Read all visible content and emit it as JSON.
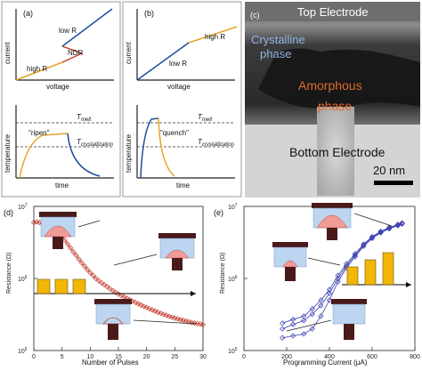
{
  "panel_a": {
    "label": "(a)",
    "iv": {
      "ylabel": "current",
      "xlabel": "voltage",
      "low_r": "low R",
      "high_r": "high R",
      "ndr": "NDR"
    },
    "temp": {
      "ylabel": "temperature",
      "xlabel": "time",
      "t_melt": "T",
      "t_melt_sub": "melt",
      "t_cryst": "T",
      "t_cryst_sub": "crystallization",
      "note": "\"ripen\""
    }
  },
  "panel_b": {
    "label": "(b)",
    "iv": {
      "ylabel": "current",
      "xlabel": "voltage",
      "low_r": "low R",
      "high_r": "high R"
    },
    "temp": {
      "ylabel": "temperature",
      "xlabel": "time",
      "t_melt": "T",
      "t_melt_sub": "melt",
      "t_cryst": "T",
      "t_cryst_sub": "crystallization",
      "note": "\"quench\""
    }
  },
  "panel_c": {
    "label": "(c)",
    "top_electrode": "Top Electrode",
    "crystalline_l1": "Crystalline",
    "crystalline_l2": "phase",
    "amorphous_l1": "Amorphous",
    "amorphous_l2": "phase",
    "bottom_electrode": "Bottom Electrode",
    "scale_bar": "20 nm"
  },
  "colors": {
    "blue_curve": "#1f4e9e",
    "orange_curve": "#e6a228",
    "red_curve": "#c0392b",
    "ndr_curve": "#c0392b",
    "series_d": "#c0392b",
    "series_e": "#3a3fb0",
    "bars": "#f2b705",
    "crystalline_text": "#8fb3e6",
    "amorphous_text": "#e0692b",
    "electrode": "#4a1a1a",
    "cell_blue": "#bcd5f0",
    "amorphous_dome": "#f19b96"
  },
  "chart_data": [
    {
      "type": "scatter",
      "panel": "(d)",
      "xlabel": "Number of Pulses",
      "ylabel": "Resistance (Ω)",
      "xlim": [
        0,
        30
      ],
      "ylim": [
        100000,
        10000000
      ],
      "y_scale": "log",
      "x_ticks": [
        "0",
        "5",
        "10",
        "15",
        "20",
        "25",
        "30"
      ],
      "y_ticks": [
        {
          "base": "10",
          "exp": "5"
        },
        {
          "base": "10",
          "exp": "6"
        },
        {
          "base": "10",
          "exp": "7"
        }
      ],
      "series": [
        {
          "marker": "open diamond",
          "x": [
            0,
            0.5,
            1,
            1.5,
            2,
            2.5,
            3,
            3.5,
            4,
            4.5,
            5,
            5.5,
            6,
            6.5,
            7,
            7.5,
            8,
            8.5,
            9,
            9.5,
            10,
            10.5,
            11,
            11.5,
            12,
            12.5,
            13,
            13.5,
            14,
            14.5,
            15,
            15.5,
            16,
            16.5,
            17,
            17.5,
            18,
            18.5,
            19,
            19.5,
            20,
            20.5,
            21,
            21.5,
            22,
            22.5,
            23,
            23.5,
            24,
            24.5,
            25,
            25.5,
            26,
            26.5,
            27,
            27.5,
            28,
            28.5,
            29,
            29.5,
            30
          ],
          "y": [
            6000000,
            6100000,
            6000000,
            5800000,
            5600000,
            5300000,
            5000000,
            4700000,
            4400000,
            4100000,
            3800000,
            3400000,
            3000000,
            2650000,
            2350000,
            2100000,
            1850000,
            1650000,
            1480000,
            1330000,
            1200000,
            1100000,
            1000000,
            930000,
            870000,
            820000,
            770000,
            720000,
            680000,
            640000,
            610000,
            580000,
            555000,
            530000,
            505000,
            485000,
            465000,
            445000,
            428000,
            410000,
            395000,
            380000,
            366000,
            352000,
            340000,
            328000,
            318000,
            308000,
            298000,
            290000,
            282000,
            275000,
            268000,
            262000,
            256000,
            250000,
            245000,
            240000,
            236000,
            232000,
            228000
          ]
        }
      ],
      "bars": {
        "count": 3
      }
    },
    {
      "type": "line",
      "panel": "(e)",
      "xlabel": "Programming Current (μA)",
      "ylabel": "Resistance (Ω)",
      "xlim": [
        0,
        800
      ],
      "ylim": [
        100000,
        10000000
      ],
      "y_scale": "log",
      "x_ticks": [
        "0",
        "200",
        "400",
        "600",
        "800"
      ],
      "y_ticks": [
        {
          "base": "10",
          "exp": "5"
        },
        {
          "base": "10",
          "exp": "6"
        },
        {
          "base": "10",
          "exp": "7"
        }
      ],
      "series": [
        {
          "marker": "open diamond",
          "x": [
            180,
            230,
            280,
            320,
            360,
            400,
            440,
            480,
            520,
            560,
            600,
            640,
            680,
            720,
            740
          ],
          "y": [
            150000,
            160000,
            170000,
            200000,
            300000,
            500000,
            900000,
            1400000,
            2000000,
            2800000,
            3600000,
            4300000,
            4900000,
            5400000,
            5700000
          ]
        },
        {
          "marker": "open diamond",
          "x": [
            180,
            230,
            280,
            320,
            360,
            400,
            440,
            480,
            520,
            560,
            600,
            640,
            680,
            720,
            740
          ],
          "y": [
            200000,
            230000,
            260000,
            320000,
            420000,
            620000,
            1000000,
            1500000,
            2100000,
            2900000,
            3700000,
            4400000,
            5000000,
            5500000,
            5800000
          ]
        },
        {
          "marker": "open diamond",
          "x": [
            180,
            230,
            280,
            320,
            360,
            400,
            440,
            480,
            520,
            560,
            600,
            640,
            680,
            720,
            740
          ],
          "y": [
            240000,
            270000,
            300000,
            380000,
            500000,
            700000,
            1100000,
            1600000,
            2200000,
            3000000,
            3800000,
            4500000,
            5100000,
            5600000,
            5900000
          ]
        }
      ],
      "bars": {
        "count": 3,
        "increasing": true
      }
    }
  ],
  "panel_d_label": "(d)",
  "panel_e_label": "(e)"
}
